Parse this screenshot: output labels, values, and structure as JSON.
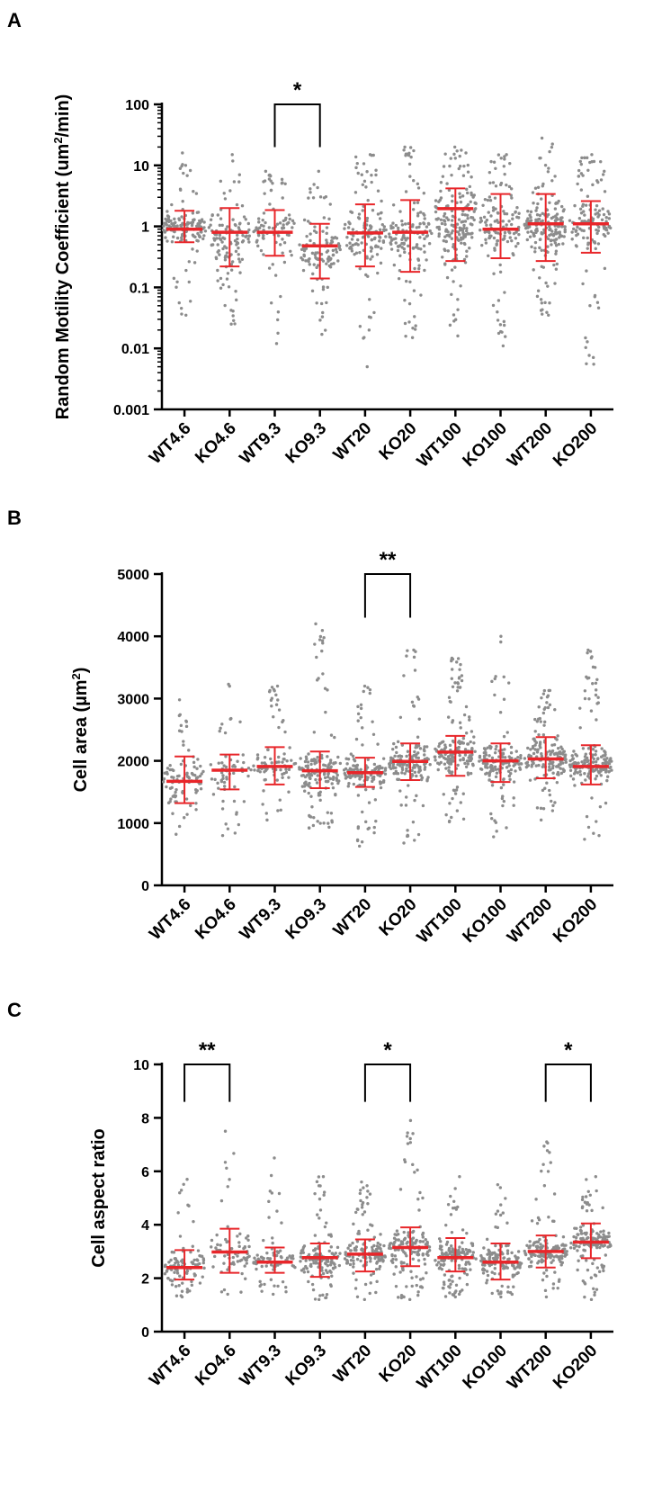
{
  "chart_data": [
    {
      "panel": "A",
      "type": "scatter",
      "scale": "log",
      "title": "",
      "xlabel": "",
      "ylabel": "Random Motility Coefficient (um²/min)",
      "ylabel_main": "Random Motility Coefficient (um",
      "ylabel_sup": "2",
      "ylabel_tail": "/min)",
      "ylim": [
        0.001,
        100
      ],
      "yticks": [
        0.001,
        0.01,
        0.1,
        1,
        10,
        100
      ],
      "ytick_labels": [
        "0.001",
        "0.01",
        "0.1",
        "1",
        "10",
        "100"
      ],
      "categories": [
        "WT4.6",
        "KO4.6",
        "WT9.3",
        "KO9.3",
        "WT20",
        "KO20",
        "WT100",
        "KO100",
        "WT200",
        "KO200"
      ],
      "median": [
        0.9,
        0.8,
        0.8,
        0.48,
        0.78,
        0.8,
        1.95,
        0.9,
        1.1,
        1.1
      ],
      "q1": [
        0.55,
        0.22,
        0.33,
        0.14,
        0.22,
        0.18,
        0.27,
        0.3,
        0.27,
        0.37
      ],
      "q3": [
        1.8,
        2.0,
        1.85,
        1.1,
        2.3,
        2.7,
        4.2,
        3.4,
        3.4,
        2.6
      ],
      "min": [
        0.035,
        0.025,
        0.012,
        0.017,
        0.005,
        0.015,
        0.016,
        0.011,
        0.035,
        0.0055
      ],
      "max": [
        16,
        15,
        8,
        8,
        15,
        20,
        20,
        15,
        28,
        15
      ],
      "n": [
        140,
        120,
        90,
        110,
        130,
        130,
        180,
        130,
        180,
        130
      ],
      "significance": [
        {
          "from": 2,
          "to": 3,
          "label": "*"
        }
      ]
    },
    {
      "panel": "B",
      "type": "scatter",
      "scale": "linear",
      "title": "",
      "xlabel": "",
      "ylabel": "Cell area (µm²)",
      "ylabel_main": "Cell area (µm",
      "ylabel_sup": "2",
      "ylabel_tail": ")",
      "ylim": [
        0,
        5000
      ],
      "yticks": [
        0,
        1000,
        2000,
        3000,
        4000,
        5000
      ],
      "ytick_labels": [
        "0",
        "1000",
        "2000",
        "3000",
        "4000",
        "5000"
      ],
      "categories": [
        "WT4.6",
        "KO4.6",
        "WT9.3",
        "KO9.3",
        "WT20",
        "KO20",
        "WT100",
        "KO100",
        "WT200",
        "KO200"
      ],
      "median": [
        1670,
        1850,
        1910,
        1840,
        1810,
        1990,
        2140,
        2000,
        2030,
        1910
      ],
      "q1": [
        1320,
        1540,
        1620,
        1560,
        1580,
        1690,
        1760,
        1660,
        1720,
        1620
      ],
      "q3": [
        2070,
        2100,
        2220,
        2150,
        2050,
        2280,
        2400,
        2280,
        2380,
        2250
      ],
      "min": [
        820,
        800,
        1050,
        920,
        630,
        680,
        1020,
        780,
        1050,
        740
      ],
      "max": [
        2980,
        3230,
        3200,
        4200,
        3200,
        3780,
        3650,
        4000,
        3130,
        3780
      ],
      "n": [
        90,
        60,
        80,
        150,
        140,
        150,
        170,
        140,
        160,
        170
      ],
      "significance": [
        {
          "from": 4,
          "to": 5,
          "label": "**"
        }
      ]
    },
    {
      "panel": "C",
      "type": "scatter",
      "scale": "linear",
      "title": "",
      "xlabel": "",
      "ylabel": "Cell aspect ratio",
      "ylabel_main": "Cell aspect ratio",
      "ylabel_sup": "",
      "ylabel_tail": "",
      "ylim": [
        0,
        10
      ],
      "yticks": [
        0,
        2,
        4,
        6,
        8,
        10
      ],
      "ytick_labels": [
        "0",
        "2",
        "4",
        "6",
        "8",
        "10"
      ],
      "categories": [
        "WT4.6",
        "KO4.6",
        "WT9.3",
        "KO9.3",
        "WT20",
        "KO20",
        "WT100",
        "KO100",
        "WT200",
        "KO200"
      ],
      "median": [
        2.4,
        2.98,
        2.6,
        2.77,
        2.9,
        3.15,
        2.77,
        2.6,
        3.0,
        3.35
      ],
      "q1": [
        1.95,
        2.2,
        2.2,
        2.05,
        2.25,
        2.45,
        2.25,
        1.95,
        2.4,
        2.75
      ],
      "q3": [
        3.05,
        3.85,
        3.15,
        3.3,
        3.45,
        3.9,
        3.5,
        3.3,
        3.6,
        4.05
      ],
      "min": [
        1.3,
        1.4,
        1.4,
        1.2,
        1.2,
        1.2,
        1.3,
        1.3,
        1.3,
        1.2
      ],
      "max": [
        5.7,
        7.5,
        6.5,
        5.8,
        5.6,
        7.9,
        5.8,
        5.5,
        7.1,
        5.8
      ],
      "n": [
        100,
        70,
        80,
        130,
        140,
        150,
        150,
        140,
        150,
        140
      ],
      "significance": [
        {
          "from": 0,
          "to": 1,
          "label": "**"
        },
        {
          "from": 4,
          "to": 5,
          "label": "*"
        },
        {
          "from": 8,
          "to": 9,
          "label": "*"
        }
      ]
    }
  ],
  "colors": {
    "points": "#8c8c8c",
    "summary": "#e8262a",
    "axis": "#000000"
  }
}
